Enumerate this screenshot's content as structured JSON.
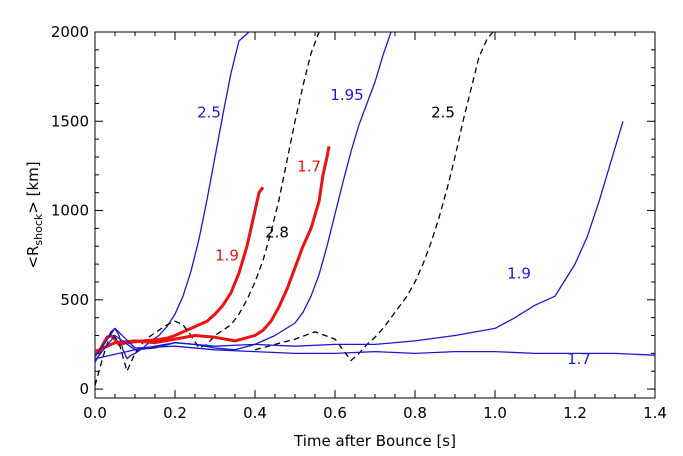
{
  "chart_data": {
    "type": "line",
    "xlabel": "Time after Bounce [s]",
    "ylabel_prefix": "<R",
    "ylabel_sub": "shock",
    "ylabel_suffix": "> [km]",
    "xlim": [
      0.0,
      1.4
    ],
    "ylim": [
      -50,
      2000
    ],
    "xticks": [
      "0.0",
      "0.2",
      "0.4",
      "0.6",
      "0.8",
      "1.0",
      "1.2",
      "1.4"
    ],
    "yticks": [
      "0",
      "500",
      "1000",
      "1500",
      "2000"
    ],
    "grid": false,
    "legend": "none",
    "colors": {
      "blue": "#1a1acd",
      "red": "#ee1111",
      "black": "#000000"
    },
    "series": [
      {
        "label": "2.5",
        "color": "blue",
        "style": "solid",
        "label_pos": [
          0.285,
          1520
        ],
        "x": [
          0.0,
          0.01,
          0.02,
          0.03,
          0.04,
          0.05,
          0.06,
          0.07,
          0.08,
          0.09,
          0.1,
          0.12,
          0.14,
          0.16,
          0.18,
          0.2,
          0.22,
          0.24,
          0.26,
          0.28,
          0.3,
          0.32,
          0.34,
          0.36,
          0.385
        ],
        "y": [
          150,
          190,
          240,
          280,
          320,
          340,
          300,
          220,
          170,
          190,
          200,
          230,
          270,
          300,
          350,
          420,
          520,
          660,
          840,
          1060,
          1300,
          1540,
          1770,
          1950,
          2000
        ]
      },
      {
        "label": "1.9",
        "color": "red",
        "style": "thick",
        "label_pos": [
          0.33,
          720
        ],
        "x": [
          0.0,
          0.01,
          0.02,
          0.03,
          0.04,
          0.05,
          0.06,
          0.07,
          0.08,
          0.1,
          0.12,
          0.15,
          0.18,
          0.2,
          0.22,
          0.25,
          0.28,
          0.3,
          0.32,
          0.34,
          0.36,
          0.38,
          0.39,
          0.4,
          0.41,
          0.42
        ],
        "y": [
          200,
          210,
          250,
          290,
          300,
          280,
          250,
          255,
          260,
          265,
          270,
          275,
          285,
          300,
          320,
          350,
          380,
          420,
          470,
          540,
          650,
          800,
          900,
          1000,
          1100,
          1130
        ]
      },
      {
        "label": "2.8",
        "color": "black",
        "style": "dashed",
        "label_pos": [
          0.455,
          850
        ],
        "x": [
          0.0,
          0.02,
          0.04,
          0.06,
          0.08,
          0.1,
          0.12,
          0.14,
          0.16,
          0.18,
          0.2,
          0.22,
          0.24,
          0.26,
          0.28,
          0.3,
          0.32,
          0.34,
          0.36,
          0.38,
          0.4,
          0.42,
          0.44,
          0.46,
          0.48,
          0.5,
          0.52,
          0.54,
          0.56
        ],
        "y": [
          20,
          180,
          320,
          260,
          100,
          200,
          260,
          300,
          330,
          360,
          380,
          360,
          300,
          230,
          250,
          300,
          330,
          360,
          420,
          500,
          600,
          720,
          880,
          1060,
          1280,
          1500,
          1700,
          1880,
          2000
        ]
      },
      {
        "label": "1.7",
        "color": "red",
        "style": "thick",
        "label_pos": [
          0.535,
          1220
        ],
        "x": [
          0.0,
          0.05,
          0.1,
          0.15,
          0.2,
          0.25,
          0.3,
          0.35,
          0.4,
          0.42,
          0.44,
          0.46,
          0.48,
          0.5,
          0.52,
          0.54,
          0.56,
          0.57,
          0.58,
          0.585
        ],
        "y": [
          210,
          260,
          270,
          260,
          280,
          300,
          290,
          270,
          300,
          330,
          380,
          460,
          560,
          680,
          800,
          900,
          1050,
          1200,
          1300,
          1360
        ]
      },
      {
        "label": "1.95",
        "color": "blue",
        "style": "solid",
        "label_pos": [
          0.63,
          1620
        ],
        "x": [
          0.0,
          0.05,
          0.1,
          0.15,
          0.2,
          0.25,
          0.3,
          0.35,
          0.4,
          0.45,
          0.5,
          0.52,
          0.54,
          0.56,
          0.58,
          0.6,
          0.62,
          0.64,
          0.66,
          0.68,
          0.7,
          0.72,
          0.74
        ],
        "y": [
          160,
          300,
          220,
          230,
          260,
          250,
          230,
          220,
          250,
          300,
          370,
          430,
          520,
          640,
          800,
          980,
          1160,
          1330,
          1480,
          1600,
          1720,
          1870,
          2000
        ]
      },
      {
        "label": "2.5",
        "color": "black",
        "style": "dashed",
        "label_pos": [
          0.87,
          1520
        ],
        "x": [
          0.4,
          0.45,
          0.5,
          0.55,
          0.6,
          0.62,
          0.64,
          0.66,
          0.68,
          0.7,
          0.72,
          0.74,
          0.76,
          0.78,
          0.8,
          0.82,
          0.84,
          0.86,
          0.88,
          0.9,
          0.92,
          0.94,
          0.96,
          0.98,
          0.995
        ],
        "y": [
          220,
          250,
          280,
          320,
          280,
          220,
          160,
          200,
          250,
          290,
          340,
          400,
          460,
          520,
          600,
          700,
          820,
          960,
          1120,
          1300,
          1500,
          1680,
          1860,
          1960,
          2000
        ]
      },
      {
        "label": "1.9",
        "color": "blue",
        "style": "solid",
        "label_pos": [
          1.06,
          620
        ],
        "x": [
          0.0,
          0.1,
          0.2,
          0.3,
          0.4,
          0.5,
          0.6,
          0.7,
          0.8,
          0.9,
          1.0,
          1.05,
          1.1,
          1.15,
          1.2,
          1.23,
          1.26,
          1.28,
          1.3,
          1.32
        ],
        "y": [
          170,
          220,
          260,
          240,
          250,
          240,
          250,
          250,
          270,
          300,
          340,
          400,
          470,
          520,
          700,
          850,
          1050,
          1200,
          1350,
          1500
        ]
      },
      {
        "label": "1.7",
        "color": "blue",
        "style": "solid",
        "label_pos": [
          1.21,
          140
        ],
        "x": [
          0.0,
          0.05,
          0.1,
          0.2,
          0.3,
          0.4,
          0.5,
          0.6,
          0.7,
          0.8,
          0.9,
          1.0,
          1.1,
          1.2,
          1.3,
          1.4
        ],
        "y": [
          180,
          340,
          230,
          240,
          220,
          210,
          200,
          200,
          210,
          200,
          210,
          210,
          200,
          200,
          200,
          190
        ]
      }
    ]
  }
}
